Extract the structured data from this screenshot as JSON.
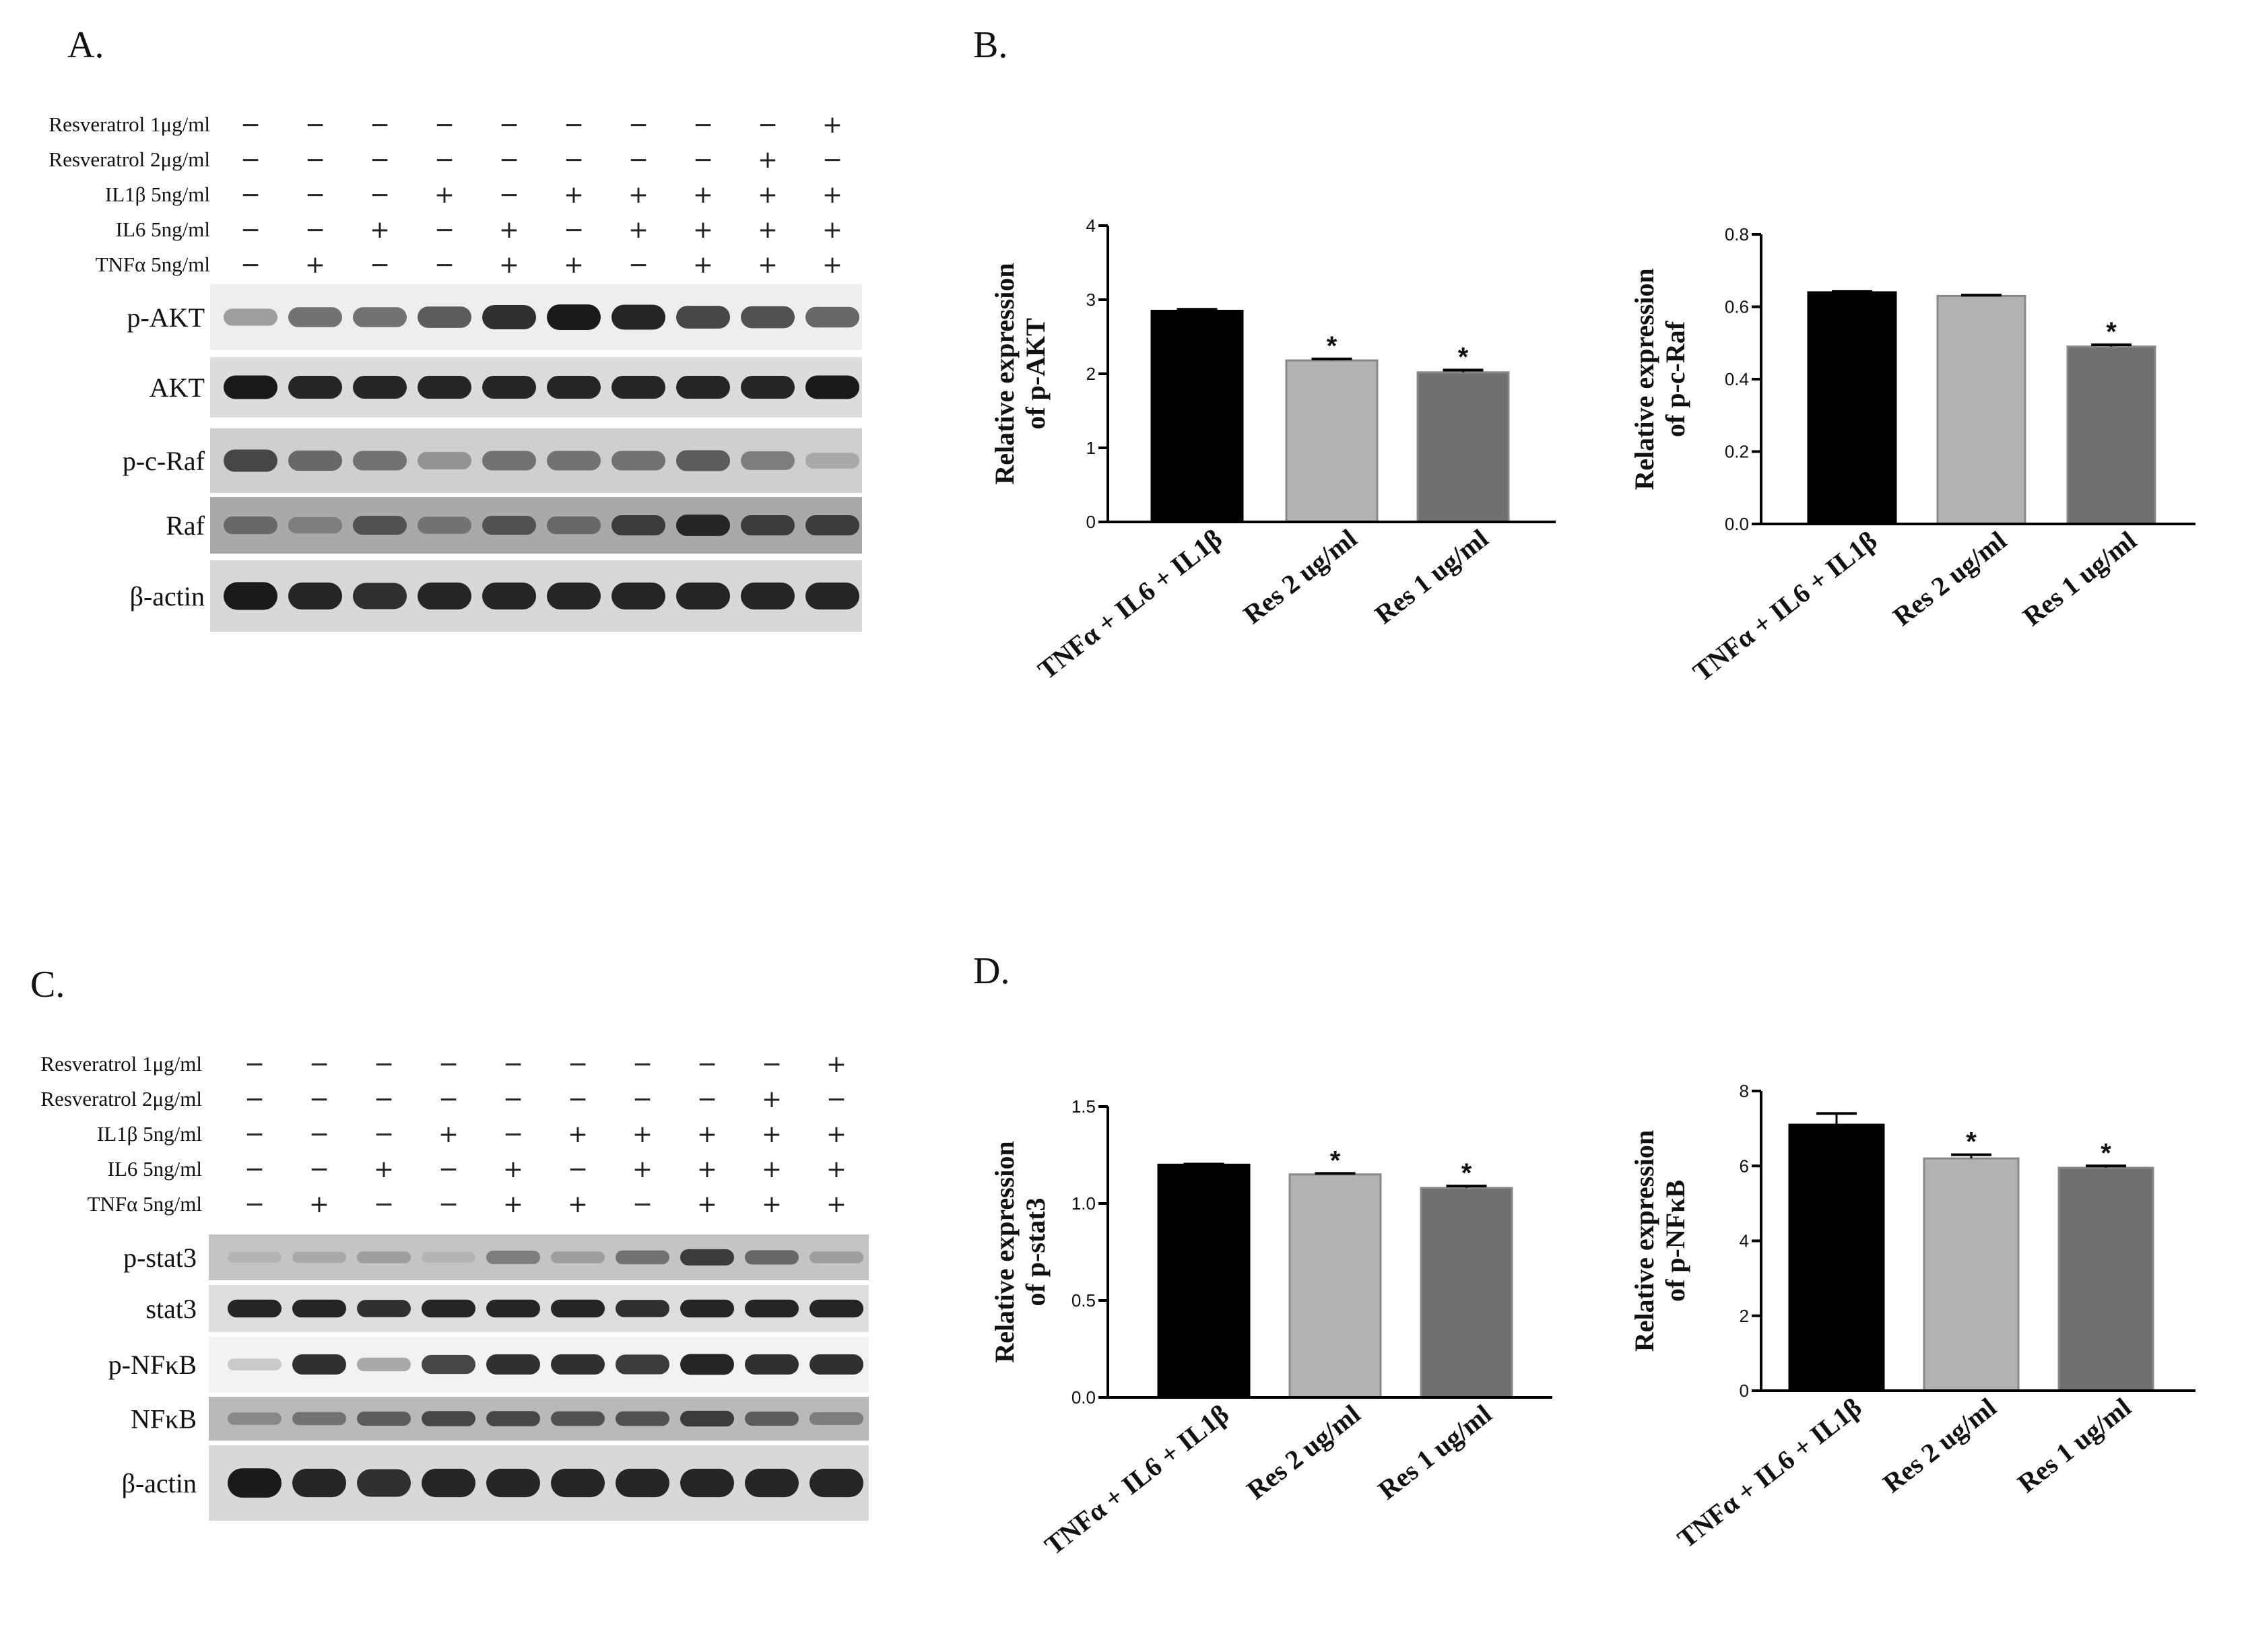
{
  "panels": {
    "A": "A.",
    "B": "B.",
    "C": "C.",
    "D": "D."
  },
  "blots": [
    {
      "panel": "A",
      "treatments": [
        {
          "label": "Resveratrol 1μg/ml",
          "signs": [
            "−",
            "−",
            "−",
            "−",
            "−",
            "−",
            "−",
            "−",
            "−",
            "+"
          ]
        },
        {
          "label": "Resveratrol 2μg/ml",
          "signs": [
            "−",
            "−",
            "−",
            "−",
            "−",
            "−",
            "−",
            "−",
            "+",
            "−"
          ]
        },
        {
          "label": "IL1β 5ng/ml",
          "signs": [
            "−",
            "−",
            "−",
            "+",
            "−",
            "+",
            "+",
            "+",
            "+",
            "+"
          ]
        },
        {
          "label": "IL6 5ng/ml",
          "signs": [
            "−",
            "−",
            "+",
            "−",
            "+",
            "−",
            "+",
            "+",
            "+",
            "+"
          ]
        },
        {
          "label": "TNFα 5ng/ml",
          "signs": [
            "−",
            "+",
            "−",
            "−",
            "+",
            "+",
            "−",
            "+",
            "+",
            "+"
          ]
        }
      ],
      "bands": [
        {
          "label": "p-AKT",
          "intensity": [
            0.35,
            0.55,
            0.55,
            0.65,
            0.85,
            0.95,
            0.9,
            0.75,
            0.7,
            0.6
          ],
          "bg": "#eeeeee"
        },
        {
          "label": "AKT",
          "intensity": [
            0.95,
            0.9,
            0.9,
            0.9,
            0.9,
            0.9,
            0.9,
            0.9,
            0.9,
            0.95
          ],
          "bg": "#dcdcdc"
        },
        {
          "label": "p-c-Raf",
          "intensity": [
            0.75,
            0.6,
            0.55,
            0.4,
            0.55,
            0.55,
            0.55,
            0.65,
            0.5,
            0.3
          ],
          "bg": "#cfcfcf"
        },
        {
          "label": "Raf",
          "intensity": [
            0.6,
            0.5,
            0.7,
            0.55,
            0.7,
            0.6,
            0.8,
            0.9,
            0.8,
            0.8
          ],
          "bg": "#a9a9a9"
        },
        {
          "label": "β-actin",
          "intensity": [
            0.95,
            0.9,
            0.85,
            0.9,
            0.9,
            0.9,
            0.9,
            0.9,
            0.9,
            0.9
          ],
          "bg": "#d8d8d8"
        }
      ]
    },
    {
      "panel": "C",
      "treatments": [
        {
          "label": "Resveratrol 1μg/ml",
          "signs": [
            "−",
            "−",
            "−",
            "−",
            "−",
            "−",
            "−",
            "−",
            "−",
            "+"
          ]
        },
        {
          "label": "Resveratrol 2μg/ml",
          "signs": [
            "−",
            "−",
            "−",
            "−",
            "−",
            "−",
            "−",
            "−",
            "+",
            "−"
          ]
        },
        {
          "label": "IL1β 5ng/ml",
          "signs": [
            "−",
            "−",
            "−",
            "+",
            "−",
            "+",
            "+",
            "+",
            "+",
            "+"
          ]
        },
        {
          "label": "IL6 5ng/ml",
          "signs": [
            "−",
            "−",
            "+",
            "−",
            "+",
            "−",
            "+",
            "+",
            "+",
            "+"
          ]
        },
        {
          "label": "TNFα 5ng/ml",
          "signs": [
            "−",
            "+",
            "−",
            "−",
            "+",
            "+",
            "−",
            "+",
            "+",
            "+"
          ]
        }
      ],
      "bands": [
        {
          "label": "p-stat3",
          "intensity": [
            0.25,
            0.3,
            0.35,
            0.25,
            0.5,
            0.35,
            0.55,
            0.8,
            0.6,
            0.35
          ],
          "bg": "#c4c4c4"
        },
        {
          "label": "stat3",
          "intensity": [
            0.9,
            0.9,
            0.85,
            0.9,
            0.9,
            0.9,
            0.85,
            0.9,
            0.9,
            0.9
          ],
          "bg": "#dedede"
        },
        {
          "label": "p-NFκB",
          "intensity": [
            0.15,
            0.85,
            0.3,
            0.75,
            0.85,
            0.85,
            0.8,
            0.9,
            0.85,
            0.85
          ],
          "bg": "#f2f2f2"
        },
        {
          "label": "NFκB",
          "intensity": [
            0.45,
            0.55,
            0.65,
            0.75,
            0.75,
            0.7,
            0.7,
            0.8,
            0.65,
            0.5
          ],
          "bg": "#b9b9b9"
        },
        {
          "label": "β-actin",
          "intensity": [
            0.95,
            0.9,
            0.85,
            0.9,
            0.9,
            0.9,
            0.9,
            0.9,
            0.9,
            0.9
          ],
          "bg": "#d8d8d8"
        }
      ]
    }
  ],
  "chart_data": [
    {
      "type": "bar",
      "panel": "B",
      "ylabel": [
        "Relative expression",
        "of p-AKT"
      ],
      "categories": [
        "TNFα + IL6 + IL1β",
        "Res 2 ug/ml",
        "Res 1 ug/ml"
      ],
      "values": [
        2.85,
        2.18,
        2.02
      ],
      "errors": [
        0.02,
        0.02,
        0.03
      ],
      "significance": [
        "",
        "*",
        "*"
      ],
      "ylim": [
        0,
        4
      ],
      "yticks": [
        0,
        1,
        2,
        3,
        4
      ],
      "ytick_labels": [
        "0",
        "1",
        "2",
        "3",
        "4"
      ],
      "colors": [
        "#000000",
        "#b2b2b2",
        "#707070"
      ]
    },
    {
      "type": "bar",
      "panel": "B",
      "ylabel": [
        "Relative expression",
        "of p-c-Raf"
      ],
      "categories": [
        "TNFα + IL6 + IL1β",
        "Res 2 ug/ml",
        "Res 1 ug/ml"
      ],
      "values": [
        0.64,
        0.63,
        0.49
      ],
      "errors": [
        0.002,
        0.002,
        0.005
      ],
      "significance": [
        "",
        "",
        "*"
      ],
      "ylim": [
        0,
        0.8
      ],
      "yticks": [
        0,
        0.2,
        0.4,
        0.6,
        0.8
      ],
      "ytick_labels": [
        "0.0",
        "0.2",
        "0.4",
        "0.6",
        "0.8"
      ],
      "colors": [
        "#000000",
        "#b2b2b2",
        "#707070"
      ]
    },
    {
      "type": "bar",
      "panel": "D",
      "ylabel": [
        "Relative expression",
        "of p-stat3"
      ],
      "categories": [
        "TNFα + IL6 + IL1β",
        "Res 2 ug/ml",
        "Res 1 ug/ml"
      ],
      "values": [
        1.2,
        1.15,
        1.08
      ],
      "errors": [
        0.003,
        0.005,
        0.01
      ],
      "significance": [
        "",
        "*",
        "*"
      ],
      "ylim": [
        0,
        1.5
      ],
      "yticks": [
        0,
        0.5,
        1.0,
        1.5
      ],
      "ytick_labels": [
        "0.0",
        "0.5",
        "1.0",
        "1.5"
      ],
      "colors": [
        "#000000",
        "#b2b2b2",
        "#707070"
      ]
    },
    {
      "type": "bar",
      "panel": "D",
      "ylabel": [
        "Relative expression",
        "of p-NFκB"
      ],
      "categories": [
        "TNFα + IL6 + IL1β",
        "Res 2 ug/ml",
        "Res 1 ug/ml"
      ],
      "values": [
        7.1,
        6.2,
        5.95
      ],
      "errors": [
        0.3,
        0.1,
        0.05
      ],
      "significance": [
        "",
        "*",
        "*"
      ],
      "ylim": [
        0,
        8
      ],
      "yticks": [
        0,
        2,
        4,
        6,
        8
      ],
      "ytick_labels": [
        "0",
        "2",
        "4",
        "6",
        "8"
      ],
      "colors": [
        "#000000",
        "#b2b2b2",
        "#707070"
      ]
    }
  ]
}
